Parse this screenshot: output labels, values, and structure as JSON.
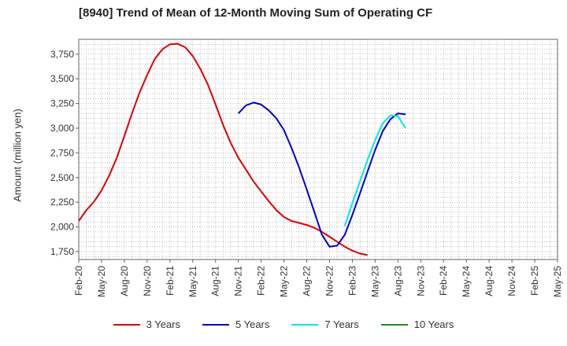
{
  "chart_data": {
    "type": "line",
    "title": "[8940]  Trend of Mean of 12-Month Moving Sum of Operating CF",
    "xlabel": "",
    "ylabel": "Amount (million yen)",
    "ylim": [
      1670,
      3900
    ],
    "yticks": [
      1750,
      2000,
      2250,
      2500,
      2750,
      3000,
      3250,
      3500,
      3750
    ],
    "ytick_labels": [
      "1,750",
      "2,000",
      "2,250",
      "2,500",
      "2,750",
      "3,000",
      "3,250",
      "3,500",
      "3,750"
    ],
    "x_categories": [
      "Feb-20",
      "May-20",
      "Aug-20",
      "Nov-20",
      "Feb-21",
      "May-21",
      "Aug-21",
      "Nov-21",
      "Feb-22",
      "May-22",
      "Aug-22",
      "Nov-22",
      "Feb-23",
      "May-23",
      "Aug-23",
      "Nov-23",
      "Feb-24",
      "May-24",
      "Aug-24",
      "Nov-24",
      "Feb-25",
      "May-25"
    ],
    "grid": true,
    "legend_position": "bottom",
    "series": [
      {
        "name": "3 Years",
        "color": "#dd0000",
        "start_index": 0,
        "values": [
          2060,
          2170,
          2255,
          2370,
          2520,
          2700,
          2920,
          3150,
          3360,
          3540,
          3700,
          3800,
          3850,
          3855,
          3820,
          3730,
          3600,
          3440,
          3240,
          3030,
          2850,
          2700,
          2580,
          2460,
          2360,
          2260,
          2170,
          2100,
          2060,
          2040,
          2020,
          1990,
          1950,
          1900,
          1850,
          1800,
          1760,
          1730,
          1715
        ]
      },
      {
        "name": "5 Years",
        "color": "#0000cc",
        "start_index": 21,
        "values": [
          3150,
          3230,
          3260,
          3240,
          3180,
          3100,
          2980,
          2800,
          2600,
          2380,
          2150,
          1920,
          1800,
          1810,
          1920,
          2120,
          2340,
          2560,
          2780,
          2970,
          3090,
          3150,
          3140
        ]
      },
      {
        "name": "7 Years",
        "color": "#00e5ee",
        "start_index": 35,
        "values": [
          2010,
          2240,
          2460,
          2680,
          2880,
          3050,
          3130,
          3120,
          3000
        ]
      },
      {
        "name": "10 Years",
        "color": "#228b22",
        "start_index": 0,
        "values": []
      }
    ]
  }
}
